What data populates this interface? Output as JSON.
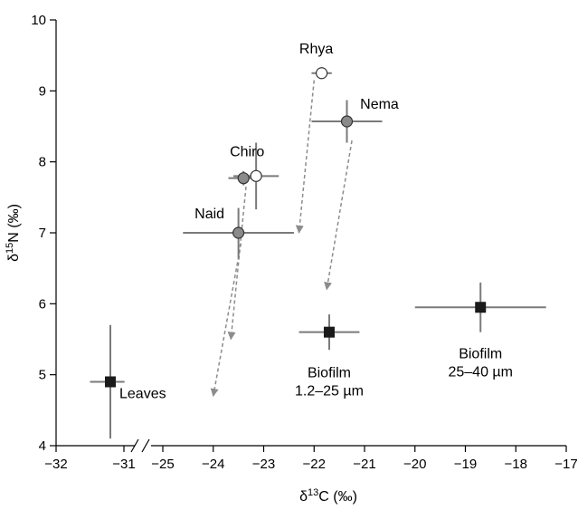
{
  "chart_data": {
    "type": "scatter",
    "xlabel_parts": [
      "δ",
      "13",
      "C (‰)"
    ],
    "ylabel_parts": [
      "δ",
      "15",
      "N (‰)"
    ],
    "x_axis": {
      "segments": [
        [
          -32,
          -31.4
        ],
        [
          -25.5,
          -17
        ]
      ],
      "ticks": [
        -32,
        -31,
        -25,
        -24,
        -23,
        -22,
        -21,
        -20,
        -19,
        -18,
        -17
      ]
    },
    "y_axis": {
      "range": [
        4,
        10
      ],
      "ticks": [
        4,
        5,
        6,
        7,
        8,
        9,
        10
      ]
    },
    "points": [
      {
        "id": "leaves",
        "x": -31.2,
        "y": 4.9,
        "x_err": 0.3,
        "y_err": 0.8,
        "marker": "square",
        "label_lines": [
          "Leaves"
        ]
      },
      {
        "id": "biofilm-small",
        "x": -21.7,
        "y": 5.6,
        "x_err": 0.6,
        "y_err": 0.25,
        "marker": "square",
        "label_lines": [
          "Biofilm",
          "1.2–25 µm"
        ]
      },
      {
        "id": "biofilm-large",
        "x": -18.7,
        "y": 5.95,
        "x_err": 1.3,
        "y_err": 0.35,
        "marker": "square",
        "label_lines": [
          "Biofilm",
          "25–40 µm"
        ]
      },
      {
        "id": "naid",
        "x": -23.5,
        "y": 7.0,
        "x_err": 1.1,
        "y_err": 0.35,
        "marker": "gray-circle",
        "label_lines": [
          "Naid"
        ]
      },
      {
        "id": "chiro-gray",
        "x": -23.4,
        "y": 7.77,
        "x_err": 0.3,
        "y_err": 0.1,
        "marker": "gray-circle",
        "label_lines": [
          "Chiro"
        ]
      },
      {
        "id": "chiro-open",
        "x": -23.15,
        "y": 7.8,
        "x_err": 0.45,
        "y_err": 0.47,
        "marker": "open-circle",
        "label_lines": []
      },
      {
        "id": "rhya",
        "x": -21.85,
        "y": 9.25,
        "x_err": 0.2,
        "y_err": 0.05,
        "marker": "open-circle",
        "label_lines": [
          "Rhya"
        ]
      },
      {
        "id": "nema",
        "x": -21.35,
        "y": 8.57,
        "x_err": 0.7,
        "y_err": 0.3,
        "marker": "gray-circle",
        "label_lines": [
          "Nema"
        ]
      }
    ],
    "arrows": [
      {
        "from": [
          -22.0,
          9.15
        ],
        "to": [
          -22.3,
          7.0
        ]
      },
      {
        "from": [
          -21.25,
          8.3
        ],
        "to": [
          -21.75,
          6.2
        ]
      },
      {
        "from": [
          -23.35,
          7.65
        ],
        "to": [
          -23.65,
          5.5
        ]
      },
      {
        "from": [
          -23.45,
          6.85
        ],
        "to": [
          -24.0,
          4.7
        ]
      }
    ],
    "colors": {
      "axis": "#000000",
      "error_bar": "#7a7a7a",
      "square_marker": "#1a1a1a",
      "gray_marker": "#8a8a8a",
      "open_marker": "#ffffff",
      "arrow": "#8c8c8c"
    },
    "grid": false,
    "legend": "none"
  }
}
